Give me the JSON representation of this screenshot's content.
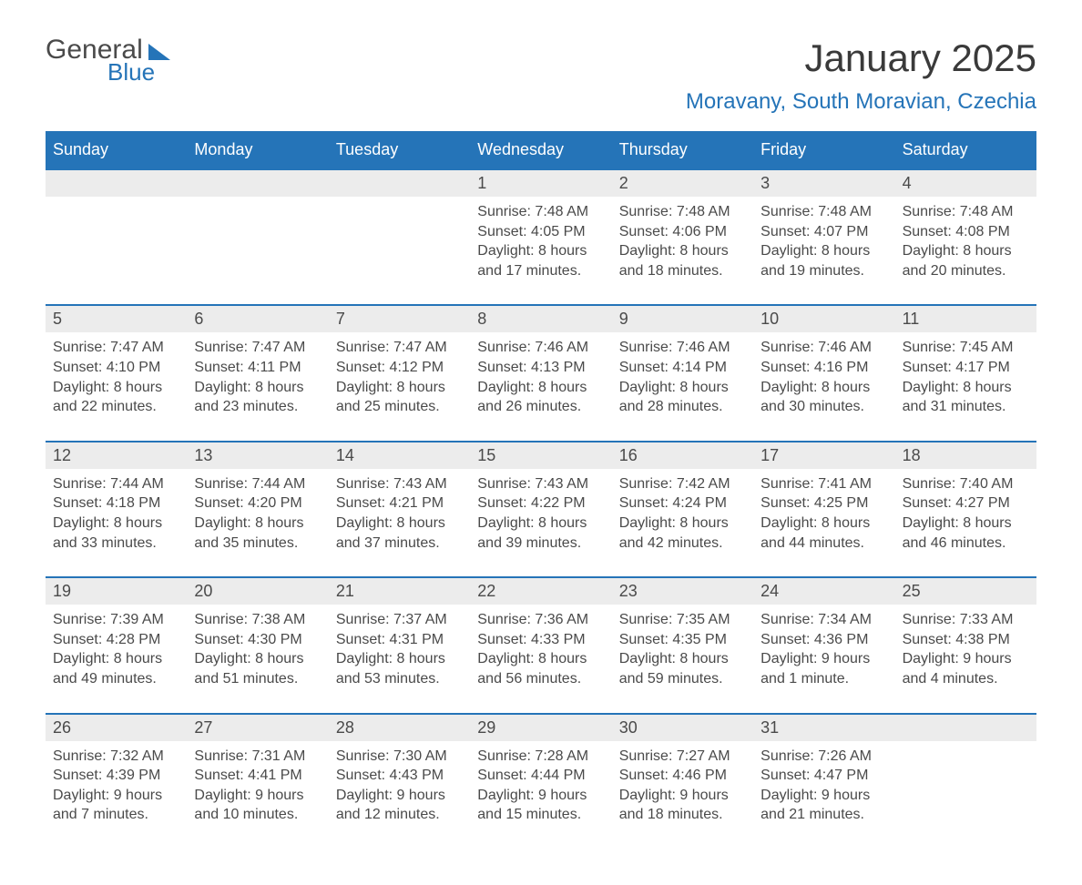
{
  "logo": {
    "text_general": "General",
    "text_blue": "Blue"
  },
  "title": "January 2025",
  "location": "Moravany, South Moravian, Czechia",
  "day_names": [
    "Sunday",
    "Monday",
    "Tuesday",
    "Wednesday",
    "Thursday",
    "Friday",
    "Saturday"
  ],
  "colors": {
    "accent": "#2574b8",
    "header_bg": "#2574b8",
    "header_fg": "#ffffff",
    "daynum_bg": "#ececec",
    "text": "#4a4a4a",
    "background": "#ffffff"
  },
  "weeks": [
    [
      {
        "day": "",
        "sunrise": "",
        "sunset": "",
        "daylight": ""
      },
      {
        "day": "",
        "sunrise": "",
        "sunset": "",
        "daylight": ""
      },
      {
        "day": "",
        "sunrise": "",
        "sunset": "",
        "daylight": ""
      },
      {
        "day": "1",
        "sunrise": "Sunrise: 7:48 AM",
        "sunset": "Sunset: 4:05 PM",
        "daylight": "Daylight: 8 hours and 17 minutes."
      },
      {
        "day": "2",
        "sunrise": "Sunrise: 7:48 AM",
        "sunset": "Sunset: 4:06 PM",
        "daylight": "Daylight: 8 hours and 18 minutes."
      },
      {
        "day": "3",
        "sunrise": "Sunrise: 7:48 AM",
        "sunset": "Sunset: 4:07 PM",
        "daylight": "Daylight: 8 hours and 19 minutes."
      },
      {
        "day": "4",
        "sunrise": "Sunrise: 7:48 AM",
        "sunset": "Sunset: 4:08 PM",
        "daylight": "Daylight: 8 hours and 20 minutes."
      }
    ],
    [
      {
        "day": "5",
        "sunrise": "Sunrise: 7:47 AM",
        "sunset": "Sunset: 4:10 PM",
        "daylight": "Daylight: 8 hours and 22 minutes."
      },
      {
        "day": "6",
        "sunrise": "Sunrise: 7:47 AM",
        "sunset": "Sunset: 4:11 PM",
        "daylight": "Daylight: 8 hours and 23 minutes."
      },
      {
        "day": "7",
        "sunrise": "Sunrise: 7:47 AM",
        "sunset": "Sunset: 4:12 PM",
        "daylight": "Daylight: 8 hours and 25 minutes."
      },
      {
        "day": "8",
        "sunrise": "Sunrise: 7:46 AM",
        "sunset": "Sunset: 4:13 PM",
        "daylight": "Daylight: 8 hours and 26 minutes."
      },
      {
        "day": "9",
        "sunrise": "Sunrise: 7:46 AM",
        "sunset": "Sunset: 4:14 PM",
        "daylight": "Daylight: 8 hours and 28 minutes."
      },
      {
        "day": "10",
        "sunrise": "Sunrise: 7:46 AM",
        "sunset": "Sunset: 4:16 PM",
        "daylight": "Daylight: 8 hours and 30 minutes."
      },
      {
        "day": "11",
        "sunrise": "Sunrise: 7:45 AM",
        "sunset": "Sunset: 4:17 PM",
        "daylight": "Daylight: 8 hours and 31 minutes."
      }
    ],
    [
      {
        "day": "12",
        "sunrise": "Sunrise: 7:44 AM",
        "sunset": "Sunset: 4:18 PM",
        "daylight": "Daylight: 8 hours and 33 minutes."
      },
      {
        "day": "13",
        "sunrise": "Sunrise: 7:44 AM",
        "sunset": "Sunset: 4:20 PM",
        "daylight": "Daylight: 8 hours and 35 minutes."
      },
      {
        "day": "14",
        "sunrise": "Sunrise: 7:43 AM",
        "sunset": "Sunset: 4:21 PM",
        "daylight": "Daylight: 8 hours and 37 minutes."
      },
      {
        "day": "15",
        "sunrise": "Sunrise: 7:43 AM",
        "sunset": "Sunset: 4:22 PM",
        "daylight": "Daylight: 8 hours and 39 minutes."
      },
      {
        "day": "16",
        "sunrise": "Sunrise: 7:42 AM",
        "sunset": "Sunset: 4:24 PM",
        "daylight": "Daylight: 8 hours and 42 minutes."
      },
      {
        "day": "17",
        "sunrise": "Sunrise: 7:41 AM",
        "sunset": "Sunset: 4:25 PM",
        "daylight": "Daylight: 8 hours and 44 minutes."
      },
      {
        "day": "18",
        "sunrise": "Sunrise: 7:40 AM",
        "sunset": "Sunset: 4:27 PM",
        "daylight": "Daylight: 8 hours and 46 minutes."
      }
    ],
    [
      {
        "day": "19",
        "sunrise": "Sunrise: 7:39 AM",
        "sunset": "Sunset: 4:28 PM",
        "daylight": "Daylight: 8 hours and 49 minutes."
      },
      {
        "day": "20",
        "sunrise": "Sunrise: 7:38 AM",
        "sunset": "Sunset: 4:30 PM",
        "daylight": "Daylight: 8 hours and 51 minutes."
      },
      {
        "day": "21",
        "sunrise": "Sunrise: 7:37 AM",
        "sunset": "Sunset: 4:31 PM",
        "daylight": "Daylight: 8 hours and 53 minutes."
      },
      {
        "day": "22",
        "sunrise": "Sunrise: 7:36 AM",
        "sunset": "Sunset: 4:33 PM",
        "daylight": "Daylight: 8 hours and 56 minutes."
      },
      {
        "day": "23",
        "sunrise": "Sunrise: 7:35 AM",
        "sunset": "Sunset: 4:35 PM",
        "daylight": "Daylight: 8 hours and 59 minutes."
      },
      {
        "day": "24",
        "sunrise": "Sunrise: 7:34 AM",
        "sunset": "Sunset: 4:36 PM",
        "daylight": "Daylight: 9 hours and 1 minute."
      },
      {
        "day": "25",
        "sunrise": "Sunrise: 7:33 AM",
        "sunset": "Sunset: 4:38 PM",
        "daylight": "Daylight: 9 hours and 4 minutes."
      }
    ],
    [
      {
        "day": "26",
        "sunrise": "Sunrise: 7:32 AM",
        "sunset": "Sunset: 4:39 PM",
        "daylight": "Daylight: 9 hours and 7 minutes."
      },
      {
        "day": "27",
        "sunrise": "Sunrise: 7:31 AM",
        "sunset": "Sunset: 4:41 PM",
        "daylight": "Daylight: 9 hours and 10 minutes."
      },
      {
        "day": "28",
        "sunrise": "Sunrise: 7:30 AM",
        "sunset": "Sunset: 4:43 PM",
        "daylight": "Daylight: 9 hours and 12 minutes."
      },
      {
        "day": "29",
        "sunrise": "Sunrise: 7:28 AM",
        "sunset": "Sunset: 4:44 PM",
        "daylight": "Daylight: 9 hours and 15 minutes."
      },
      {
        "day": "30",
        "sunrise": "Sunrise: 7:27 AM",
        "sunset": "Sunset: 4:46 PM",
        "daylight": "Daylight: 9 hours and 18 minutes."
      },
      {
        "day": "31",
        "sunrise": "Sunrise: 7:26 AM",
        "sunset": "Sunset: 4:47 PM",
        "daylight": "Daylight: 9 hours and 21 minutes."
      },
      {
        "day": "",
        "sunrise": "",
        "sunset": "",
        "daylight": ""
      }
    ]
  ]
}
